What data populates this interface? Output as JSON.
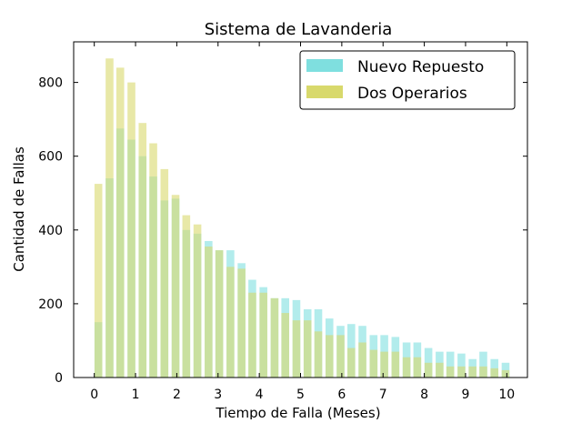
{
  "chart_data": {
    "type": "bar",
    "title": "Sistema de Lavanderia",
    "xlabel": "Tiempo de Falla (Meses)",
    "ylabel": "Cantidad de Fallas",
    "xlim": [
      -0.5,
      10.5
    ],
    "ylim": [
      0,
      910
    ],
    "xticks": [
      0,
      1,
      2,
      3,
      4,
      5,
      6,
      7,
      8,
      9,
      10
    ],
    "yticks": [
      0,
      200,
      400,
      600,
      800
    ],
    "grid": false,
    "legend_position": "top-right",
    "bin_centers": [
      0.1,
      0.37,
      0.63,
      0.9,
      1.17,
      1.43,
      1.7,
      1.97,
      2.23,
      2.5,
      2.77,
      3.03,
      3.3,
      3.57,
      3.83,
      4.1,
      4.37,
      4.63,
      4.9,
      5.17,
      5.43,
      5.7,
      5.97,
      6.23,
      6.5,
      6.77,
      7.03,
      7.3,
      7.57,
      7.83,
      8.1,
      8.37,
      8.63,
      8.9,
      9.17,
      9.43,
      9.7,
      9.97
    ],
    "series": [
      {
        "name": "Nuevo Repuesto",
        "color": "#7fdfdf",
        "values": [
          150,
          540,
          675,
          645,
          600,
          545,
          480,
          485,
          400,
          390,
          370,
          345,
          345,
          310,
          265,
          245,
          215,
          215,
          210,
          185,
          185,
          160,
          140,
          145,
          140,
          115,
          115,
          110,
          95,
          95,
          80,
          70,
          70,
          65,
          50,
          70,
          50,
          40
        ]
      },
      {
        "name": "Dos Operarios",
        "color": "#d8d96c",
        "values": [
          525,
          865,
          840,
          800,
          690,
          635,
          565,
          495,
          440,
          415,
          355,
          345,
          300,
          295,
          230,
          230,
          215,
          175,
          155,
          155,
          125,
          115,
          115,
          80,
          95,
          75,
          70,
          70,
          55,
          55,
          40,
          40,
          30,
          30,
          30,
          30,
          25,
          20
        ]
      }
    ]
  }
}
